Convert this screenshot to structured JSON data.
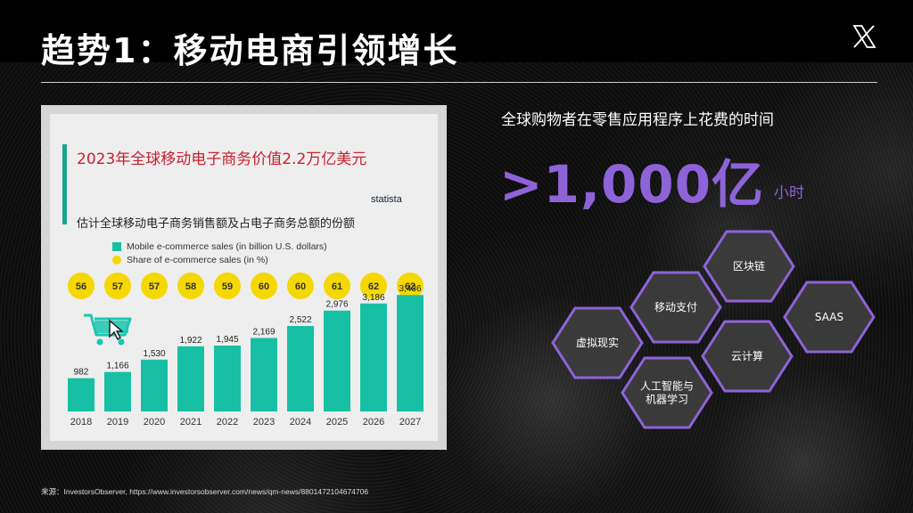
{
  "slide": {
    "title": "趋势1：移动电商引领增长",
    "source": "来源：InvestorsObserver, https://www.investorsobserver.com/news/qm-news/8801472104674706"
  },
  "stat": {
    "caption": "全球购物者在零售应用程序上花费的时间",
    "value": ">1,000亿",
    "unit": "小时",
    "accent_color": "#8e63d8"
  },
  "hexagons": [
    {
      "label": "区块链"
    },
    {
      "label": "移动支付"
    },
    {
      "label": "SAAS"
    },
    {
      "label": "虚拟现实"
    },
    {
      "label": "云计算"
    },
    {
      "label": "人工智能与\n机器学习"
    }
  ],
  "icons": {
    "logo": "x-logo-icon",
    "cart": "shopping-cart-icon",
    "cursor": "cursor-icon"
  },
  "chart_data": {
    "type": "bar",
    "title": "2023年全球移动电子商务价值2.2万亿美元",
    "subtitle": "估计全球移动电子商务销售额及占电子商务总额的份额",
    "brand": "statista",
    "categories": [
      "2018",
      "2019",
      "2020",
      "2021",
      "2022",
      "2023",
      "2024",
      "2025",
      "2026",
      "2027"
    ],
    "series": [
      {
        "name": "Mobile e-commerce sales (in billion U.S. dollars)",
        "values": [
          982,
          1166,
          1530,
          1922,
          1945,
          2169,
          2522,
          2976,
          3186,
          3436
        ],
        "color": "#17c0a5"
      },
      {
        "name": "Share of e-commerce sales (in %)",
        "values": [
          56,
          57,
          57,
          58,
          59,
          60,
          60,
          61,
          62,
          62
        ],
        "color": "#f5d800"
      }
    ],
    "value_labels": [
      "982",
      "1,166",
      "1,530",
      "1,922",
      "1,945",
      "2,169",
      "2,522",
      "2,976",
      "3,186",
      "3,436"
    ],
    "ylim": [
      0,
      3600
    ]
  }
}
